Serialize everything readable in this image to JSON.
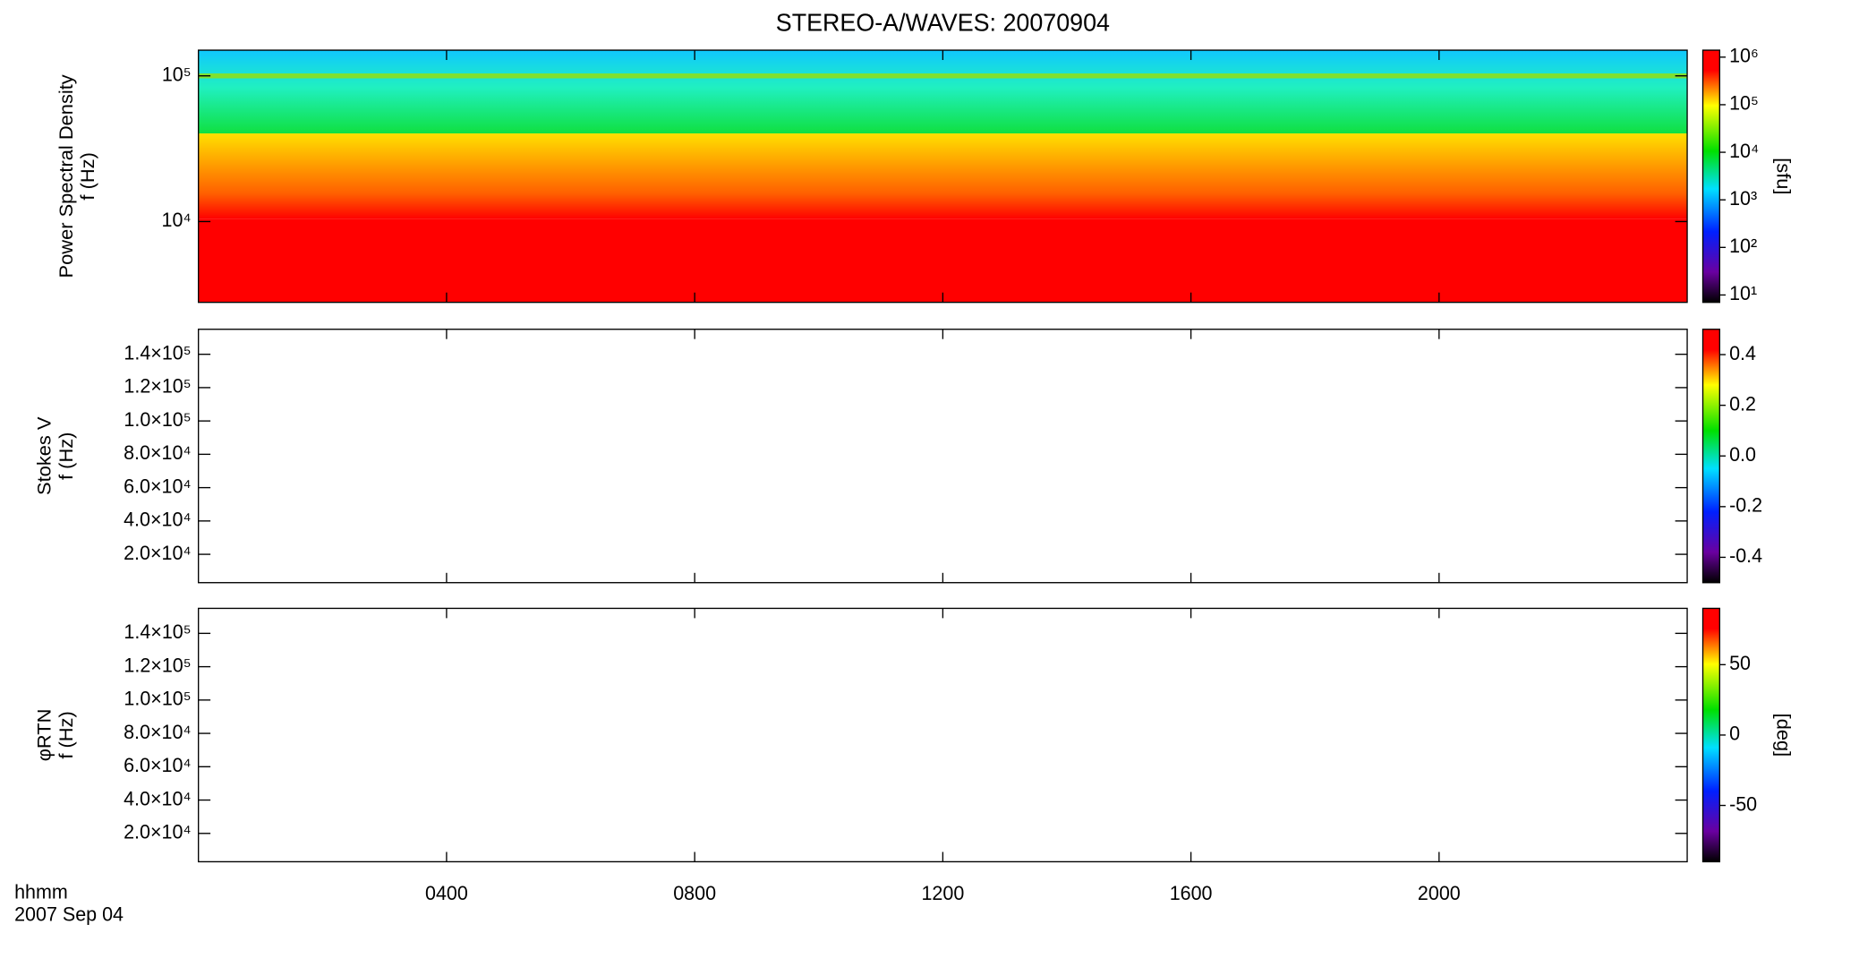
{
  "chart_data": [
    {
      "type": "heatmap",
      "title": "STEREO-A/WAVES: 20070904",
      "ylabel": [
        "Power Spectral Density",
        "f (Hz)"
      ],
      "ylog": true,
      "ylim": [
        2790,
        150000
      ],
      "yticks": [
        {
          "value": 10000,
          "label": "10⁴"
        },
        {
          "value": 100000,
          "label": "10⁵"
        }
      ],
      "clog": true,
      "clim": [
        7,
        1400000
      ],
      "cticks": [
        {
          "value": 10,
          "label": "10¹"
        },
        {
          "value": 100,
          "label": "10²"
        },
        {
          "value": 1000,
          "label": "10³"
        },
        {
          "value": 10000,
          "label": "10⁴"
        },
        {
          "value": 100000,
          "label": "10⁵"
        },
        {
          "value": 1000000,
          "label": "10⁶"
        }
      ],
      "clabel": "[sfu]",
      "xlim": [
        0,
        24
      ]
    },
    {
      "type": "heatmap",
      "ylabel": [
        "Stokes V",
        "f (Hz)"
      ],
      "ylog": false,
      "ylim": [
        3000,
        155000
      ],
      "yticks": [
        {
          "value": 20000,
          "label": "2.0×10⁴"
        },
        {
          "value": 40000,
          "label": "4.0×10⁴"
        },
        {
          "value": 60000,
          "label": "6.0×10⁴"
        },
        {
          "value": 80000,
          "label": "8.0×10⁴"
        },
        {
          "value": 100000,
          "label": "1.0×10⁵"
        },
        {
          "value": 120000,
          "label": "1.2×10⁵"
        },
        {
          "value": 140000,
          "label": "1.4×10⁵"
        }
      ],
      "clog": false,
      "clim": [
        -0.5,
        0.5
      ],
      "cticks": [
        -0.4,
        -0.2,
        {
          "value": 0,
          "label": "0.0"
        },
        0.2,
        0.4
      ],
      "xlim": [
        0,
        24
      ]
    },
    {
      "type": "heatmap",
      "ylabel": [
        "φRTN",
        "f (Hz)"
      ],
      "ylog": false,
      "ylim": [
        3000,
        155000
      ],
      "yticks": [
        {
          "value": 20000,
          "label": "2.0×10⁴"
        },
        {
          "value": 40000,
          "label": "4.0×10⁴"
        },
        {
          "value": 60000,
          "label": "6.0×10⁴"
        },
        {
          "value": 80000,
          "label": "8.0×10⁴"
        },
        {
          "value": 100000,
          "label": "1.0×10⁵"
        },
        {
          "value": 120000,
          "label": "1.2×10⁵"
        },
        {
          "value": 140000,
          "label": "1.4×10⁵"
        }
      ],
      "clog": false,
      "clim": [
        -90,
        90
      ],
      "cticks": [
        -50,
        0,
        50
      ],
      "clabel": "[deg]",
      "xlim": [
        0,
        24
      ],
      "xticks": [
        {
          "value": 4,
          "label": "0400"
        },
        {
          "value": 8,
          "label": "0800"
        },
        {
          "value": 12,
          "label": "1200"
        },
        {
          "value": 16,
          "label": "1600"
        },
        {
          "value": 20,
          "label": "2000"
        }
      ],
      "xlabel": "hhmm",
      "date": "2007 Sep 04"
    }
  ]
}
